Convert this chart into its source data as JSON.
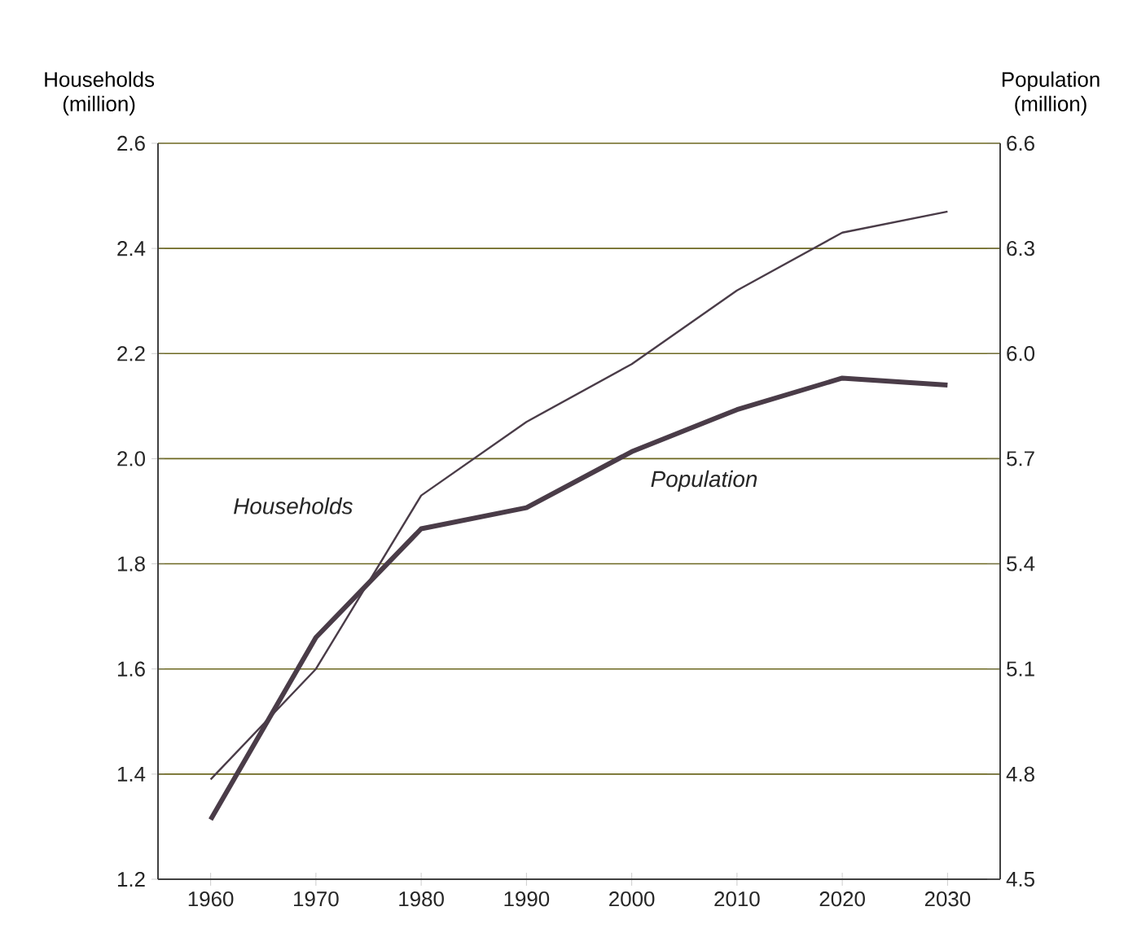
{
  "chart_data": {
    "type": "line",
    "ylabel": "Households (million)",
    "y2label": "Population (million)",
    "x": [
      1960,
      1970,
      1980,
      1990,
      2000,
      2010,
      2020,
      2030
    ],
    "xlim": [
      1955,
      2035
    ],
    "xticks": [
      1960,
      1970,
      1980,
      1990,
      2000,
      2010,
      2020,
      2030
    ],
    "ylim": [
      1.2,
      2.6
    ],
    "yticks": [
      {
        "value": 1.2,
        "label": "1.2"
      },
      {
        "value": 1.4,
        "label": "1.4"
      },
      {
        "value": 1.6,
        "label": "1.6"
      },
      {
        "value": 1.8,
        "label": "1.8"
      },
      {
        "value": 2.0,
        "label": "2.0"
      },
      {
        "value": 2.2,
        "label": "2.2"
      },
      {
        "value": 2.4,
        "label": "2.4"
      },
      {
        "value": 2.6,
        "label": "2.6"
      }
    ],
    "y2lim": [
      4.5,
      6.6
    ],
    "y2ticks": [
      4.5,
      4.8,
      5.1,
      5.4,
      5.7,
      {
        "value": 6.0,
        "label": "6.0"
      },
      6.3,
      6.6
    ],
    "grid": "y",
    "series": [
      {
        "name": "Households",
        "color": "#4a3c48",
        "values": [
          1.39,
          1.6,
          1.93,
          2.07,
          2.18,
          2.32,
          2.43,
          2.47
        ]
      },
      {
        "name": "Population",
        "color": "#4a3c48",
        "axis": "y2",
        "values": [
          4.67,
          5.19,
          5.5,
          5.56,
          5.72,
          5.84,
          5.93,
          5.91
        ]
      }
    ]
  }
}
